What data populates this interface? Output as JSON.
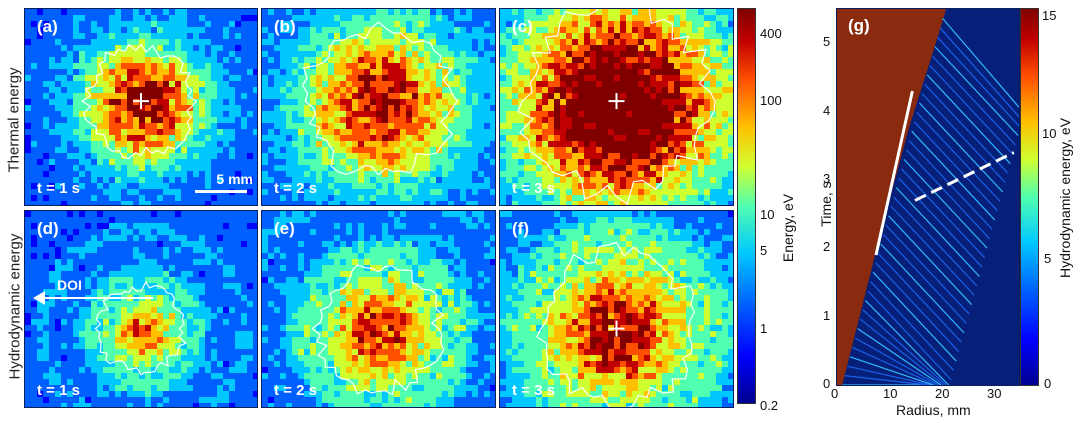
{
  "row_labels": {
    "top": "Thermal energy",
    "bottom": "Hydrodynamic energy"
  },
  "panels": [
    {
      "id": "a",
      "label": "(a)",
      "time": "t = 1 s"
    },
    {
      "id": "b",
      "label": "(b)",
      "time": "t = 2 s"
    },
    {
      "id": "c",
      "label": "(c)",
      "time": "t = 3 s"
    },
    {
      "id": "d",
      "label": "(d)",
      "time": "t = 1 s"
    },
    {
      "id": "e",
      "label": "(e)",
      "time": "t = 2 s"
    },
    {
      "id": "f",
      "label": "(f)",
      "time": "t = 3 s"
    }
  ],
  "scale_bar": "5 mm",
  "doi_label": "DOI",
  "colorbar_energy": {
    "title": "Energy, eV",
    "ticks": [
      "400",
      "100",
      "10",
      "5",
      "1",
      "0.2"
    ]
  },
  "panel_g": {
    "label": "(g)",
    "colorbar_title": "Hydrodynamic energy, eV",
    "colorbar_ticks": [
      "15",
      "10",
      "5",
      "0"
    ]
  },
  "chart_data": {
    "type": "heatmap",
    "title": "",
    "xlabel": "Radius, mm",
    "ylabel": "Time, s",
    "xlim": [
      0,
      35
    ],
    "ylim": [
      0,
      5.5
    ],
    "xticks": [
      "0",
      "10",
      "20",
      "30"
    ],
    "yticks": [
      "0",
      "1",
      "2",
      "3",
      "4",
      "5"
    ],
    "colorbar_range": [
      0,
      15
    ],
    "annotations": [
      {
        "style": "solid",
        "from": [
          7.5,
          1.9
        ],
        "to": [
          14.5,
          4.3
        ]
      },
      {
        "style": "dashed",
        "from": [
          15,
          2.7
        ],
        "to": [
          34,
          3.4
        ]
      }
    ]
  },
  "colors": {
    "background_map": "#06207a",
    "hot": "#8a2a0e",
    "colormap": [
      "#00008f",
      "#0040ff",
      "#00c0ff",
      "#80ff80",
      "#ffc000",
      "#ff4000",
      "#800000"
    ]
  }
}
